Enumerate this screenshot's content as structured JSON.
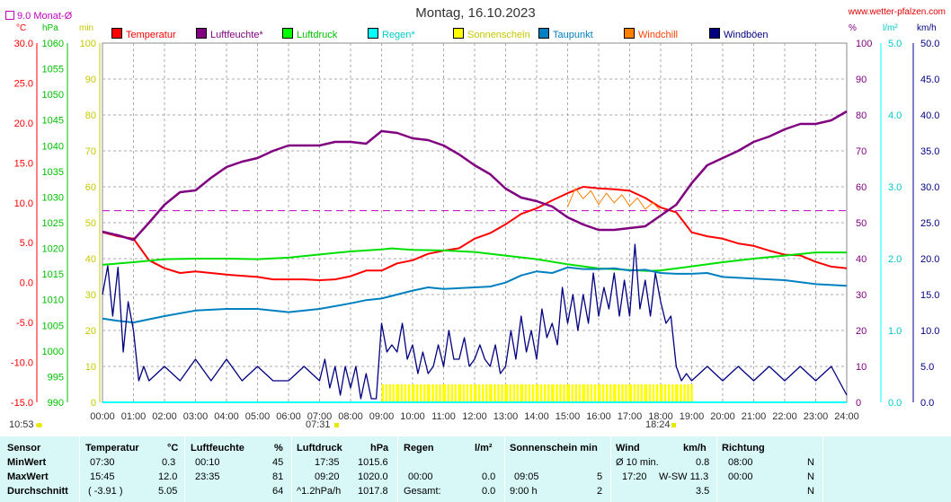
{
  "header": {
    "title": "Montag, 16.10.2023",
    "site": "www.wetter-pfalzen.com",
    "month_avg": "9.0 Monat-Ø"
  },
  "units": {
    "temp": "°C",
    "pressure": "hPa",
    "min": "min",
    "pct": "%",
    "rain": "l/m²",
    "wind": "km/h"
  },
  "legend": [
    {
      "label": "Temperatur",
      "color": "#ff0000"
    },
    {
      "label": "Luftfeuchte*",
      "color": "#800080"
    },
    {
      "label": "Luftdruck",
      "color": "#00ff00"
    },
    {
      "label": "Regen*",
      "color": "#00ffff"
    },
    {
      "label": "Sonnenschein",
      "color": "#ffff00"
    },
    {
      "label": "Taupunkt",
      "color": "#0080c0"
    },
    {
      "label": "Windchill",
      "color": "#ff8000"
    },
    {
      "label": "Windböen",
      "color": "#000080"
    }
  ],
  "markers": {
    "sunrise": "07:31",
    "sunset": "18:24",
    "update": "10:53"
  },
  "chart_data": {
    "type": "line",
    "xlim": [
      "00:00",
      "24:00"
    ],
    "x_ticks": [
      "00:00",
      "01:00",
      "02:00",
      "03:00",
      "04:00",
      "05:00",
      "06:00",
      "07:00",
      "08:00",
      "09:00",
      "10:00",
      "11:00",
      "12:00",
      "13:00",
      "14:00",
      "15:00",
      "16:00",
      "17:00",
      "18:00",
      "19:00",
      "20:00",
      "21:00",
      "22:00",
      "23:00",
      "24:00"
    ],
    "axes": {
      "temp": {
        "ylim": [
          -15,
          30
        ],
        "ticks": [
          "30.0",
          "25.0",
          "20.0",
          "15.0",
          "10.0",
          "5.0",
          "0.0",
          "-5.0",
          "-10.0",
          "-15.0"
        ]
      },
      "pressure": {
        "ylim": [
          990,
          1060
        ],
        "ticks": [
          "1060",
          "1055",
          "1050",
          "1045",
          "1040",
          "1035",
          "1030",
          "1025",
          "1020",
          "1015",
          "1010",
          "1005",
          "1000",
          "995",
          "990"
        ]
      },
      "minutes": {
        "ylim": [
          0,
          100
        ],
        "ticks": [
          "100",
          "90",
          "80",
          "70",
          "60",
          "50",
          "40",
          "30",
          "20",
          "10",
          "0"
        ]
      },
      "percent": {
        "ylim": [
          0,
          100
        ],
        "ticks": [
          "100",
          "90",
          "80",
          "70",
          "60",
          "50",
          "40",
          "30",
          "20",
          "10",
          "0"
        ]
      },
      "rain": {
        "ylim": [
          0,
          5
        ],
        "ticks": [
          "5.0",
          "4.0",
          "3.0",
          "2.0",
          "1.0",
          "0.0"
        ]
      },
      "wind": {
        "ylim": [
          0,
          50
        ],
        "ticks": [
          "50.0",
          "45.0",
          "40.0",
          "35.0",
          "30.0",
          "25.0",
          "20.0",
          "15.0",
          "10.0",
          "5.0",
          "0.0"
        ]
      }
    },
    "month_avg_temp": 9.0,
    "series": [
      {
        "name": "Temperatur",
        "axis": "temp",
        "x": [
          0,
          0.5,
          1.0,
          1.5,
          2.0,
          2.5,
          3.0,
          4.0,
          5.0,
          5.5,
          6.0,
          6.5,
          7.0,
          7.5,
          8.0,
          8.5,
          9.0,
          9.5,
          10.0,
          10.5,
          11.0,
          11.5,
          12.0,
          12.5,
          13.0,
          13.5,
          14.0,
          14.5,
          15.0,
          15.5,
          16.0,
          16.5,
          17.0,
          17.5,
          18.0,
          18.5,
          19.0,
          19.5,
          20.0,
          20.5,
          21.0,
          21.5,
          22.0,
          22.5,
          23.0,
          23.5,
          24.0
        ],
        "y": [
          6.3,
          5.8,
          5.5,
          2.8,
          1.8,
          1.2,
          1.4,
          1.0,
          0.7,
          0.4,
          0.4,
          0.4,
          0.3,
          0.4,
          0.8,
          1.5,
          1.5,
          2.4,
          2.8,
          3.6,
          4.0,
          4.3,
          5.5,
          6.2,
          7.3,
          8.6,
          9.3,
          10.3,
          11.2,
          12.0,
          11.8,
          11.7,
          11.5,
          10.6,
          9.4,
          8.8,
          6.3,
          5.8,
          5.5,
          4.9,
          4.6,
          4.0,
          3.5,
          3.4,
          2.6,
          2.0,
          1.8
        ]
      },
      {
        "name": "Luftfeuchte*",
        "axis": "percent",
        "x": [
          0,
          0.5,
          1.0,
          1.5,
          2.0,
          2.5,
          3.0,
          3.5,
          4.0,
          4.5,
          5.0,
          5.5,
          6.0,
          6.5,
          7.0,
          7.5,
          8.0,
          8.5,
          9.0,
          9.5,
          10.0,
          10.5,
          11.0,
          11.5,
          12.0,
          12.5,
          13.0,
          13.5,
          14.0,
          14.5,
          15.0,
          15.5,
          16.0,
          16.5,
          17.0,
          17.5,
          18.0,
          18.5,
          19.0,
          19.5,
          20.0,
          20.5,
          21.0,
          21.5,
          22.0,
          22.5,
          23.0,
          23.5,
          24.0
        ],
        "y": [
          47.5,
          46.5,
          45.2,
          50.0,
          55.0,
          58.5,
          59.0,
          62.5,
          65.5,
          67.0,
          68.0,
          70.0,
          71.5,
          71.5,
          71.5,
          72.5,
          72.5,
          72.0,
          75.5,
          75.0,
          73.5,
          73.0,
          71.5,
          69.0,
          66.0,
          63.5,
          59.5,
          57.0,
          56.0,
          54.5,
          51.5,
          49.5,
          48.0,
          48.0,
          48.5,
          49.0,
          52.0,
          55.0,
          61.0,
          66.0,
          68.0,
          70.0,
          72.5,
          74.0,
          76.0,
          77.5,
          77.5,
          78.5,
          81.0
        ]
      },
      {
        "name": "Luftdruck",
        "axis": "pressure",
        "x": [
          0,
          1.0,
          2.0,
          3.0,
          4.0,
          5.0,
          6.0,
          7.0,
          8.0,
          9.0,
          9.333,
          10.0,
          11.0,
          12.0,
          13.0,
          14.0,
          15.0,
          16.0,
          17.0,
          17.583,
          18.0,
          19.0,
          20.0,
          21.0,
          22.0,
          23.0,
          24.0
        ],
        "y": [
          1016.8,
          1017.3,
          1017.9,
          1018.0,
          1018.0,
          1017.9,
          1018.2,
          1018.8,
          1019.4,
          1019.8,
          1020.0,
          1019.7,
          1019.6,
          1019.3,
          1018.6,
          1017.9,
          1016.9,
          1016.1,
          1015.8,
          1015.6,
          1015.7,
          1016.5,
          1017.3,
          1018.0,
          1018.6,
          1019.2,
          1019.2
        ]
      },
      {
        "name": "Taupunkt",
        "axis": "temp",
        "x": [
          0,
          0.5,
          1.0,
          2.0,
          3.0,
          4.0,
          5.0,
          6.0,
          7.0,
          8.0,
          8.5,
          9.0,
          9.5,
          10.0,
          10.5,
          11.0,
          11.5,
          12.0,
          12.5,
          13.0,
          13.5,
          14.0,
          14.5,
          15.0,
          15.5,
          16.0,
          16.5,
          17.0,
          17.5,
          18.0,
          18.5,
          19.0,
          19.5,
          20.0,
          21.0,
          22.0,
          23.0,
          24.0
        ],
        "y": [
          -4.5,
          -4.8,
          -5.0,
          -4.2,
          -3.5,
          -3.3,
          -3.3,
          -3.7,
          -3.3,
          -2.6,
          -2.2,
          -2.0,
          -1.5,
          -1.0,
          -0.6,
          -0.8,
          -0.7,
          -0.6,
          -0.5,
          0.0,
          0.9,
          1.4,
          1.2,
          1.9,
          1.7,
          1.7,
          1.8,
          1.5,
          1.6,
          1.2,
          1.1,
          1.1,
          1.2,
          0.7,
          0.5,
          0.3,
          -0.2,
          -0.4
        ]
      },
      {
        "name": "Windchill",
        "axis": "temp",
        "x": [
          15.0,
          15.25,
          15.5,
          15.75,
          16.0,
          16.25,
          16.5,
          16.75,
          17.0,
          17.25,
          17.5,
          17.75,
          18.0
        ],
        "y": [
          9.5,
          11.8,
          10.5,
          11.5,
          9.8,
          11.2,
          10.0,
          11.0,
          9.6,
          10.6,
          9.2,
          10.0,
          9.0
        ]
      },
      {
        "name": "Windböen",
        "axis": "wind",
        "x": [
          0,
          0.17,
          0.33,
          0.5,
          0.67,
          0.83,
          1.0,
          1.17,
          1.33,
          1.5,
          2.0,
          2.5,
          3.0,
          3.5,
          4.0,
          4.5,
          5.0,
          5.5,
          6.0,
          6.5,
          7.0,
          7.17,
          7.33,
          7.5,
          7.67,
          7.83,
          8.0,
          8.17,
          8.33,
          8.5,
          8.67,
          8.83,
          9.0,
          9.17,
          9.33,
          9.5,
          9.67,
          9.83,
          10.0,
          10.17,
          10.33,
          10.5,
          10.67,
          10.83,
          11.0,
          11.17,
          11.33,
          11.5,
          11.67,
          11.83,
          12.0,
          12.17,
          12.33,
          12.5,
          12.67,
          12.83,
          13.0,
          13.17,
          13.33,
          13.5,
          13.67,
          13.83,
          14.0,
          14.17,
          14.33,
          14.5,
          14.67,
          14.83,
          15.0,
          15.17,
          15.33,
          15.5,
          15.67,
          15.83,
          16.0,
          16.17,
          16.33,
          16.5,
          16.67,
          16.83,
          17.0,
          17.17,
          17.33,
          17.5,
          17.67,
          17.83,
          18.0,
          18.17,
          18.33,
          18.5,
          18.67,
          18.83,
          19.0,
          19.5,
          20.0,
          20.5,
          21.0,
          21.5,
          22.0,
          22.5,
          23.0,
          23.5,
          24.0
        ],
        "y": [
          15.0,
          19.0,
          12.0,
          18.8,
          7.0,
          14.0,
          10.0,
          3.0,
          5.0,
          3.0,
          5.0,
          3.0,
          6.0,
          3.0,
          6.0,
          3.0,
          5.0,
          3.0,
          3.0,
          5.0,
          3.0,
          6.0,
          2.0,
          5.0,
          1.0,
          5.0,
          2.0,
          5.0,
          0.5,
          4.0,
          0.5,
          0.5,
          11.0,
          7.0,
          8.0,
          7.0,
          11.0,
          6.0,
          8.0,
          4.0,
          7.0,
          4.0,
          5.0,
          8.0,
          5.0,
          10.0,
          6.0,
          6.0,
          9.0,
          5.0,
          6.0,
          8.0,
          6.0,
          5.0,
          8.0,
          4.0,
          5.0,
          10.0,
          6.0,
          12.0,
          7.0,
          10.0,
          6.0,
          13.0,
          9.0,
          11.0,
          8.0,
          16.0,
          11.0,
          15.0,
          10.0,
          15.0,
          11.0,
          18.0,
          12.0,
          16.0,
          13.0,
          18.0,
          12.0,
          17.0,
          12.0,
          22.0,
          13.0,
          17.0,
          12.0,
          18.0,
          14.0,
          11.0,
          12.0,
          5.0,
          3.0,
          4.0,
          3.0,
          5.0,
          3.0,
          5.0,
          3.0,
          5.0,
          3.0,
          5.0,
          3.0,
          5.0,
          1.0
        ]
      },
      {
        "name": "Sonnenschein",
        "axis": "minutes",
        "x": [
          9.0,
          9.5,
          10.0,
          10.5,
          11.0,
          11.5,
          12.0,
          12.5,
          13.0,
          13.5,
          14.0,
          14.5,
          15.0,
          15.5,
          16.0,
          16.5,
          17.0,
          17.5,
          18.0,
          18.5
        ],
        "y": [
          5,
          5,
          5,
          5,
          5,
          5,
          5,
          5,
          5,
          5,
          5,
          5,
          5,
          5,
          5,
          5,
          5,
          5,
          5,
          5
        ]
      },
      {
        "name": "Regen*",
        "axis": "rain",
        "x": [
          0,
          24
        ],
        "y": [
          0.0,
          0.0
        ]
      }
    ]
  },
  "stats": {
    "headers": {
      "sensor": "Sensor",
      "temp": "Temperatur",
      "temp_u": "°C",
      "hum": "Luftfeuchte",
      "hum_u": "%",
      "press": "Luftdruck",
      "press_u": "hPa",
      "rain": "Regen",
      "rain_u": "l/m²",
      "sun": "Sonnenschein min",
      "wind": "Wind",
      "wind_u": "km/h",
      "dir": "Richtung"
    },
    "rows": [
      {
        "label": "MinWert",
        "temp_t": "07:30",
        "temp_v": "0.3",
        "hum_t": "00:10",
        "hum_v": "45",
        "press_t": "17:35",
        "press_v": "1015.6",
        "rain_t": "",
        "rain_v": "",
        "sun_t": "",
        "sun_v": "",
        "wind_t": "Ø 10 min.",
        "wind_v": "0.8",
        "dir_t": "08:00",
        "dir_v": "N"
      },
      {
        "label": "MaxWert",
        "temp_t": "15:45",
        "temp_v": "12.0",
        "hum_t": "23:35",
        "hum_v": "81",
        "press_t": "09:20",
        "press_v": "1020.0",
        "rain_t": "00:00",
        "rain_v": "0.0",
        "sun_t": "09:05",
        "sun_v": "5",
        "wind_t": "17:20",
        "wind_v": "W-SW 11.3",
        "dir_t": "00:00",
        "dir_v": "N"
      },
      {
        "label": "Durchschnitt",
        "temp_t": "( -3.91 )",
        "temp_v": "5.05",
        "hum_t": "",
        "hum_v": "64",
        "press_t": "^1.2hPa/h",
        "press_v": "1017.8",
        "rain_t": "Gesamt:",
        "rain_v": "0.0",
        "sun_t": "9:00 h",
        "sun_v": "2",
        "wind_t": "",
        "wind_v": "3.5",
        "dir_t": "",
        "dir_v": "N"
      }
    ]
  }
}
